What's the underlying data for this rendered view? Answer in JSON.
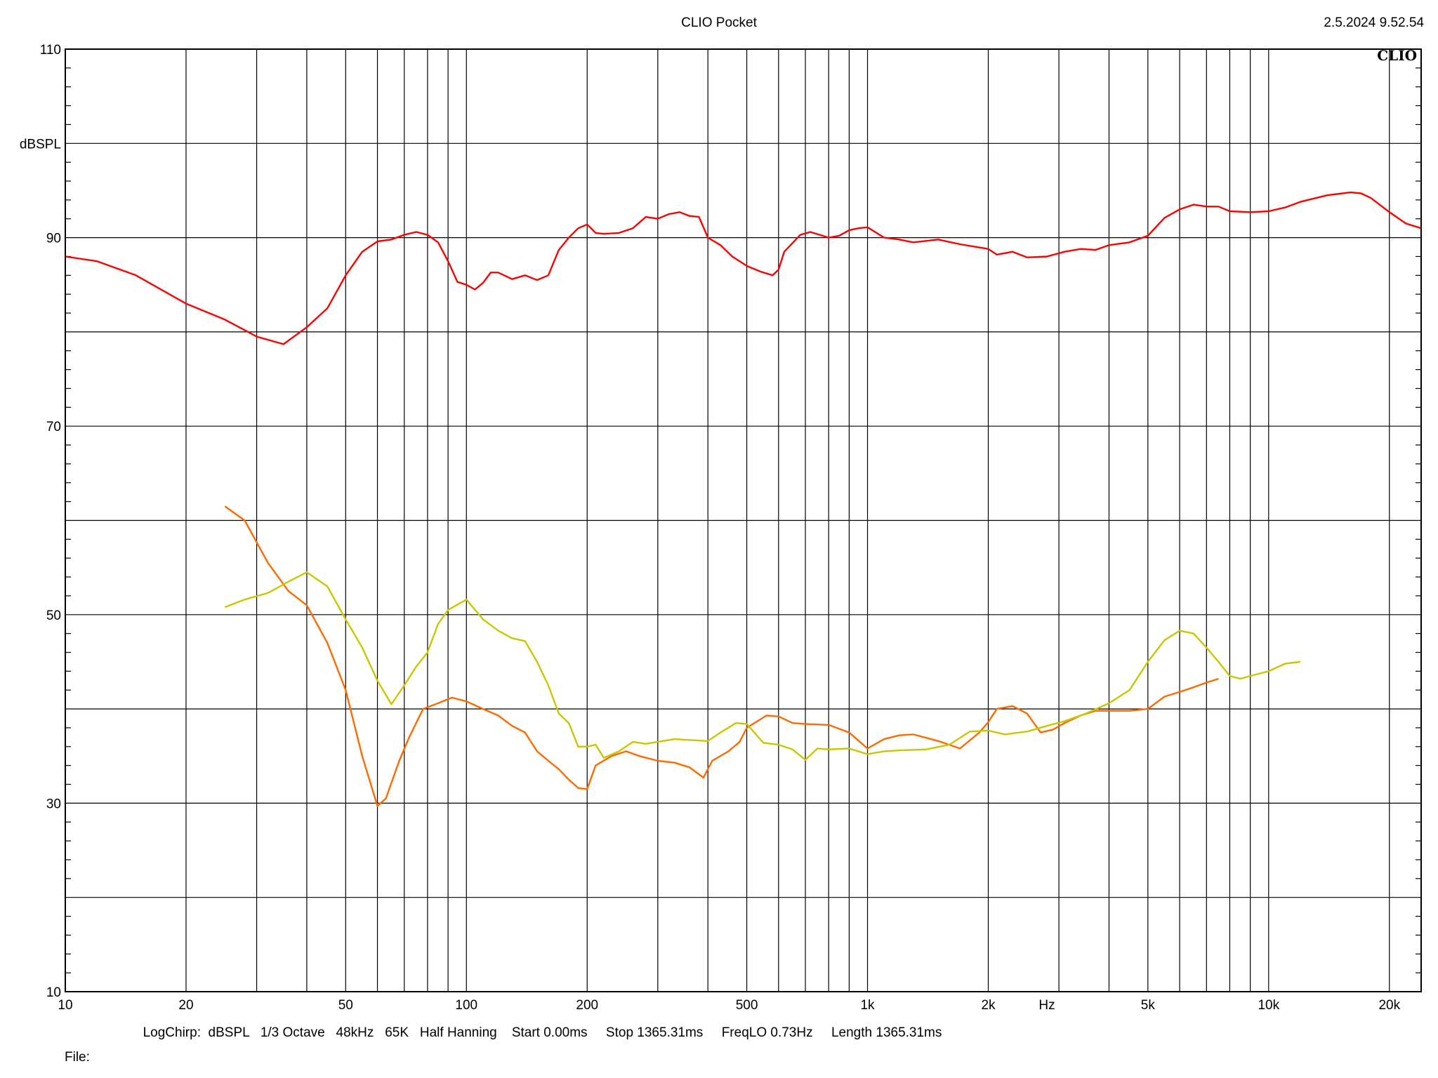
{
  "header": {
    "title": "CLIO Pocket",
    "datetime": "2.5.2024 9.52.54",
    "logo_text": "CLIO"
  },
  "footer": {
    "settings": "LogChirp:  dBSPL   1/3 Octave   48kHz   65K   Half Hanning    Start 0.00ms     Stop 1365.31ms     FreqLO 0.73Hz     Length 1365.31ms",
    "file_label": "File:"
  },
  "colors": {
    "background": "#ffffff",
    "grid": "#000000",
    "series_red": "#ff0000",
    "series_orange": "#ff6a00",
    "series_yellow": "#c8c800"
  },
  "chart_data": {
    "type": "line",
    "xscale": "log",
    "xlim": [
      10,
      24000
    ],
    "ylim": [
      10,
      110
    ],
    "ylabel": "dBSPL",
    "xlabel": "Hz",
    "grid": true,
    "y_ticks": [
      {
        "value": 110,
        "label": "110"
      },
      {
        "value": 100,
        "label": "dBSPL"
      },
      {
        "value": 90,
        "label": "90"
      },
      {
        "value": 70,
        "label": "70"
      },
      {
        "value": 50,
        "label": "50"
      },
      {
        "value": 30,
        "label": "30"
      },
      {
        "value": 10,
        "label": "10"
      }
    ],
    "x_ticks": [
      {
        "value": 10,
        "label": "10"
      },
      {
        "value": 20,
        "label": "20"
      },
      {
        "value": 50,
        "label": "50"
      },
      {
        "value": 100,
        "label": "100"
      },
      {
        "value": 200,
        "label": "200"
      },
      {
        "value": 500,
        "label": "500"
      },
      {
        "value": 1000,
        "label": "1k"
      },
      {
        "value": 2000,
        "label": "2k"
      },
      {
        "value": 2800,
        "label": "Hz"
      },
      {
        "value": 5000,
        "label": "5k"
      },
      {
        "value": 10000,
        "label": "10k"
      },
      {
        "value": 20000,
        "label": "20k"
      }
    ],
    "series": [
      {
        "color": "#ff0000",
        "points": [
          [
            10,
            88
          ],
          [
            12,
            87.5
          ],
          [
            15,
            86
          ],
          [
            20,
            83
          ],
          [
            25,
            81.3
          ],
          [
            30,
            79.5
          ],
          [
            35,
            78.7
          ],
          [
            40,
            80.5
          ],
          [
            45,
            82.5
          ],
          [
            50,
            86
          ],
          [
            55,
            88.5
          ],
          [
            60,
            89.6
          ],
          [
            65,
            89.8
          ],
          [
            70,
            90.3
          ],
          [
            75,
            90.6
          ],
          [
            80,
            90.3
          ],
          [
            85,
            89.5
          ],
          [
            90,
            87.5
          ],
          [
            95,
            85.3
          ],
          [
            100,
            85
          ],
          [
            105,
            84.5
          ],
          [
            110,
            85.2
          ],
          [
            115,
            86.3
          ],
          [
            120,
            86.3
          ],
          [
            130,
            85.6
          ],
          [
            140,
            86
          ],
          [
            150,
            85.5
          ],
          [
            160,
            86
          ],
          [
            170,
            88.7
          ],
          [
            180,
            90
          ],
          [
            190,
            91
          ],
          [
            200,
            91.4
          ],
          [
            210,
            90.5
          ],
          [
            220,
            90.4
          ],
          [
            240,
            90.5
          ],
          [
            260,
            91
          ],
          [
            280,
            92.2
          ],
          [
            300,
            92
          ],
          [
            320,
            92.5
          ],
          [
            340,
            92.7
          ],
          [
            360,
            92.3
          ],
          [
            380,
            92.2
          ],
          [
            400,
            90
          ],
          [
            430,
            89.2
          ],
          [
            460,
            88
          ],
          [
            500,
            87
          ],
          [
            540,
            86.4
          ],
          [
            580,
            86
          ],
          [
            600,
            86.6
          ],
          [
            620,
            88.5
          ],
          [
            680,
            90.3
          ],
          [
            720,
            90.6
          ],
          [
            760,
            90.3
          ],
          [
            800,
            90
          ],
          [
            850,
            90.2
          ],
          [
            900,
            90.8
          ],
          [
            950,
            91
          ],
          [
            1000,
            91.1
          ],
          [
            1100,
            90
          ],
          [
            1200,
            89.8
          ],
          [
            1300,
            89.5
          ],
          [
            1500,
            89.8
          ],
          [
            1700,
            89.3
          ],
          [
            2000,
            88.8
          ],
          [
            2100,
            88.2
          ],
          [
            2300,
            88.5
          ],
          [
            2500,
            87.9
          ],
          [
            2800,
            88
          ],
          [
            3100,
            88.5
          ],
          [
            3400,
            88.8
          ],
          [
            3700,
            88.7
          ],
          [
            4000,
            89.2
          ],
          [
            4500,
            89.5
          ],
          [
            5000,
            90.2
          ],
          [
            5500,
            92.1
          ],
          [
            6000,
            93
          ],
          [
            6500,
            93.5
          ],
          [
            7000,
            93.3
          ],
          [
            7500,
            93.3
          ],
          [
            8000,
            92.8
          ],
          [
            9000,
            92.7
          ],
          [
            10000,
            92.8
          ],
          [
            11000,
            93.2
          ],
          [
            12000,
            93.8
          ],
          [
            14000,
            94.5
          ],
          [
            16000,
            94.8
          ],
          [
            17000,
            94.7
          ],
          [
            18000,
            94.2
          ],
          [
            20000,
            92.7
          ],
          [
            22000,
            91.5
          ],
          [
            24000,
            91
          ]
        ]
      },
      {
        "color": "#ff6a00",
        "points": [
          [
            25,
            61.5
          ],
          [
            28,
            60
          ],
          [
            32,
            55.5
          ],
          [
            36,
            52.5
          ],
          [
            40,
            51
          ],
          [
            45,
            47
          ],
          [
            50,
            42
          ],
          [
            55,
            35
          ],
          [
            60,
            29.7
          ],
          [
            63,
            30.5
          ],
          [
            68,
            34.5
          ],
          [
            72,
            37
          ],
          [
            78,
            40
          ],
          [
            85,
            40.6
          ],
          [
            92,
            41.2
          ],
          [
            100,
            40.8
          ],
          [
            110,
            40
          ],
          [
            120,
            39.3
          ],
          [
            130,
            38.2
          ],
          [
            140,
            37.5
          ],
          [
            150,
            35.5
          ],
          [
            160,
            34.5
          ],
          [
            170,
            33.6
          ],
          [
            180,
            32.5
          ],
          [
            190,
            31.6
          ],
          [
            200,
            31.5
          ],
          [
            210,
            34
          ],
          [
            230,
            35
          ],
          [
            250,
            35.5
          ],
          [
            270,
            35
          ],
          [
            300,
            34.5
          ],
          [
            330,
            34.3
          ],
          [
            360,
            33.8
          ],
          [
            390,
            32.7
          ],
          [
            410,
            34.5
          ],
          [
            450,
            35.5
          ],
          [
            480,
            36.5
          ],
          [
            500,
            38
          ],
          [
            560,
            39.3
          ],
          [
            600,
            39.2
          ],
          [
            650,
            38.5
          ],
          [
            700,
            38.4
          ],
          [
            800,
            38.3
          ],
          [
            900,
            37.5
          ],
          [
            1000,
            35.8
          ],
          [
            1100,
            36.8
          ],
          [
            1200,
            37.2
          ],
          [
            1300,
            37.3
          ],
          [
            1500,
            36.6
          ],
          [
            1700,
            35.8
          ],
          [
            1900,
            37.5
          ],
          [
            2000,
            38.6
          ],
          [
            2100,
            40
          ],
          [
            2300,
            40.3
          ],
          [
            2500,
            39.5
          ],
          [
            2700,
            37.5
          ],
          [
            2900,
            37.8
          ],
          [
            3100,
            38.5
          ],
          [
            3400,
            39.3
          ],
          [
            3700,
            39.8
          ],
          [
            4000,
            39.8
          ],
          [
            4500,
            39.8
          ],
          [
            5000,
            40
          ],
          [
            5500,
            41.3
          ],
          [
            6000,
            41.8
          ],
          [
            6500,
            42.3
          ],
          [
            7000,
            42.8
          ],
          [
            7500,
            43.2
          ]
        ]
      },
      {
        "color": "#c8c800",
        "points": [
          [
            25,
            50.8
          ],
          [
            28,
            51.6
          ],
          [
            32,
            52.3
          ],
          [
            36,
            53.5
          ],
          [
            40,
            54.5
          ],
          [
            45,
            53
          ],
          [
            50,
            49.5
          ],
          [
            55,
            46.5
          ],
          [
            60,
            43
          ],
          [
            65,
            40.5
          ],
          [
            70,
            42.5
          ],
          [
            75,
            44.5
          ],
          [
            80,
            46
          ],
          [
            85,
            49
          ],
          [
            90,
            50.5
          ],
          [
            100,
            51.6
          ],
          [
            110,
            49.5
          ],
          [
            120,
            48.3
          ],
          [
            130,
            47.5
          ],
          [
            140,
            47.2
          ],
          [
            150,
            45
          ],
          [
            160,
            42.5
          ],
          [
            170,
            39.5
          ],
          [
            180,
            38.5
          ],
          [
            190,
            36
          ],
          [
            200,
            36
          ],
          [
            210,
            36.2
          ],
          [
            220,
            34.8
          ],
          [
            240,
            35.5
          ],
          [
            260,
            36.5
          ],
          [
            280,
            36.3
          ],
          [
            300,
            36.5
          ],
          [
            330,
            36.8
          ],
          [
            360,
            36.7
          ],
          [
            400,
            36.6
          ],
          [
            430,
            37.5
          ],
          [
            470,
            38.5
          ],
          [
            500,
            38.4
          ],
          [
            550,
            36.4
          ],
          [
            600,
            36.2
          ],
          [
            650,
            35.7
          ],
          [
            700,
            34.6
          ],
          [
            750,
            35.8
          ],
          [
            800,
            35.7
          ],
          [
            900,
            35.8
          ],
          [
            1000,
            35.2
          ],
          [
            1100,
            35.5
          ],
          [
            1200,
            35.6
          ],
          [
            1400,
            35.7
          ],
          [
            1600,
            36.2
          ],
          [
            1800,
            37.6
          ],
          [
            2000,
            37.7
          ],
          [
            2200,
            37.3
          ],
          [
            2500,
            37.6
          ],
          [
            2800,
            38.2
          ],
          [
            3100,
            38.7
          ],
          [
            3500,
            39.5
          ],
          [
            4000,
            40.6
          ],
          [
            4500,
            42
          ],
          [
            5000,
            45
          ],
          [
            5500,
            47.3
          ],
          [
            6000,
            48.3
          ],
          [
            6500,
            48
          ],
          [
            7000,
            46.5
          ],
          [
            7500,
            45
          ],
          [
            8000,
            43.5
          ],
          [
            8500,
            43.2
          ],
          [
            9000,
            43.5
          ],
          [
            10000,
            44
          ],
          [
            11000,
            44.8
          ],
          [
            12000,
            45
          ]
        ]
      }
    ]
  }
}
